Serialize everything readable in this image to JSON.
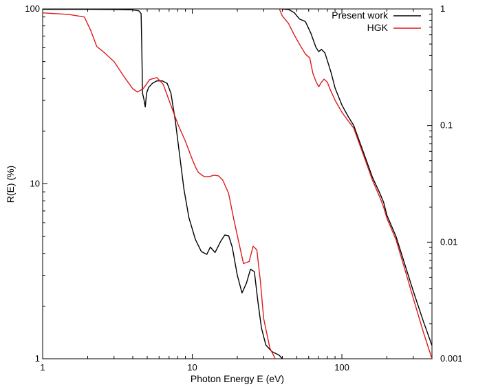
{
  "chart_data": {
    "type": "line",
    "xlabel": "Photon Energy E (eV)",
    "ylabel": "R(E) (%)",
    "x_scale": "log",
    "y_scale": "log",
    "xlim": [
      1,
      400
    ],
    "ylim": [
      1,
      100
    ],
    "y2lim": [
      0.001,
      1
    ],
    "grid": false,
    "legend_position": "top-right",
    "x_ticks": [
      {
        "value": 1,
        "label": "1"
      },
      {
        "value": 10,
        "label": "10"
      },
      {
        "value": 100,
        "label": "100"
      }
    ],
    "y_ticks": [
      {
        "value": 1,
        "label": "1"
      },
      {
        "value": 10,
        "label": "10"
      },
      {
        "value": 100,
        "label": "100"
      }
    ],
    "y2_ticks": [
      {
        "value": 0.001,
        "label": "0.001"
      },
      {
        "value": 0.01,
        "label": "0.01"
      },
      {
        "value": 0.1,
        "label": "0.1"
      },
      {
        "value": 1,
        "label": "1"
      }
    ],
    "series": [
      {
        "name": "Present work",
        "color": "#000000",
        "axis": "left",
        "x": [
          1,
          2,
          3,
          4,
          4.4,
          4.55,
          4.6,
          4.65,
          4.75,
          4.85,
          4.95,
          5.1,
          5.4,
          5.8,
          6.3,
          6.8,
          7.2,
          7.7,
          8.2,
          8.8,
          9.5,
          10.5,
          11.5,
          12.5,
          13.2,
          14.2,
          15.5,
          16.5,
          17.5,
          18.5,
          20,
          21.5,
          23,
          24.5,
          26,
          27.5,
          29,
          31,
          34,
          38,
          40
        ],
        "y": [
          99.5,
          99.5,
          99.3,
          98.8,
          97.5,
          94,
          60,
          33,
          30.5,
          27.5,
          33,
          35.5,
          37.5,
          38.8,
          38.8,
          37.5,
          33,
          23,
          15,
          9.3,
          6.4,
          4.8,
          4.1,
          3.95,
          4.35,
          4.05,
          4.7,
          5.1,
          5.05,
          4.35,
          3.0,
          2.38,
          2.7,
          3.25,
          3.15,
          2.1,
          1.5,
          1.2,
          1.1,
          1.05,
          1.0
        ]
      },
      {
        "name": "HGK",
        "color": "#dd1a1a",
        "axis": "left",
        "x": [
          1,
          1.5,
          1.9,
          2.1,
          2.3,
          2.6,
          3,
          3.5,
          4,
          4.3,
          4.7,
          5.2,
          5.8,
          6.4,
          7,
          8,
          9,
          10,
          10.5,
          11,
          12,
          13,
          14,
          15,
          16,
          17.5,
          19,
          20.5,
          22,
          24,
          25.5,
          27,
          28.5,
          30,
          33,
          37,
          40
        ],
        "y": [
          95,
          93,
          90,
          75,
          61,
          56,
          50,
          41,
          35,
          33.5,
          35,
          39.5,
          40.5,
          37,
          30,
          22,
          17.5,
          13.8,
          12.5,
          11.6,
          11.0,
          11.0,
          11.2,
          11.1,
          10.5,
          8.8,
          6.2,
          4.6,
          3.5,
          3.6,
          4.4,
          4.2,
          2.8,
          1.7,
          1.15,
          0.95,
          0.8
        ]
      },
      {
        "name": "",
        "color": "#000000",
        "axis": "right",
        "x": [
          37,
          40,
          44,
          48,
          52,
          57,
          62,
          67,
          70,
          73,
          77,
          80,
          85,
          90,
          100,
          110,
          120,
          140,
          160,
          180,
          190,
          200,
          230,
          260,
          300,
          350,
          400
        ],
        "y": [
          1.1,
          1.0,
          0.99,
          0.93,
          0.82,
          0.78,
          0.62,
          0.47,
          0.43,
          0.45,
          0.42,
          0.36,
          0.28,
          0.21,
          0.15,
          0.12,
          0.1,
          0.058,
          0.036,
          0.026,
          0.022,
          0.017,
          0.0112,
          0.0068,
          0.0038,
          0.0021,
          0.0013
        ]
      },
      {
        "name": "",
        "color": "#dd1a1a",
        "axis": "right",
        "x": [
          37,
          40,
          44,
          48,
          52,
          57,
          61,
          64,
          67,
          70,
          73,
          76,
          80,
          84,
          90,
          100,
          110,
          120,
          140,
          160,
          180,
          190,
          200,
          230,
          260,
          300,
          350,
          400
        ],
        "y": [
          1.1,
          0.87,
          0.75,
          0.6,
          0.5,
          0.41,
          0.38,
          0.28,
          0.24,
          0.215,
          0.235,
          0.25,
          0.235,
          0.2,
          0.165,
          0.13,
          0.11,
          0.095,
          0.055,
          0.034,
          0.024,
          0.02,
          0.016,
          0.0105,
          0.0062,
          0.0033,
          0.0017,
          0.001
        ]
      }
    ]
  }
}
